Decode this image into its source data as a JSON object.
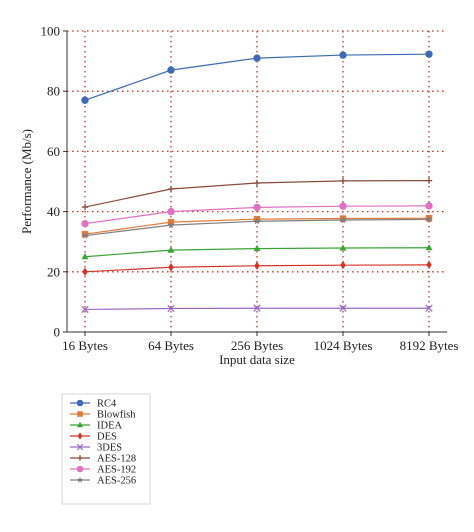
{
  "chart_data": {
    "type": "line",
    "xlabel": "Input data size",
    "ylabel": "Performance (Mb/s)",
    "categories": [
      "16 Bytes",
      "64 Bytes",
      "256 Bytes",
      "1024 Bytes",
      "8192 Bytes"
    ],
    "ylim": [
      0,
      100
    ],
    "yticks": [
      0,
      20,
      40,
      60,
      80,
      100
    ],
    "grid": "dotted",
    "grid_color": "#c0392b",
    "legend_position": "bottom-left",
    "series": [
      {
        "name": "RC4",
        "color": "#3d6bb5",
        "marker": "circle",
        "values": [
          77,
          87,
          91,
          92,
          92.3
        ]
      },
      {
        "name": "Blowfish",
        "color": "#e07b39",
        "marker": "square",
        "values": [
          32.5,
          36.5,
          37.5,
          37.7,
          37.8
        ]
      },
      {
        "name": "IDEA",
        "color": "#3aa535",
        "marker": "triangle",
        "values": [
          25,
          27.2,
          27.7,
          27.9,
          28
        ]
      },
      {
        "name": "DES",
        "color": "#d2342a",
        "marker": "diamond",
        "values": [
          20,
          21.5,
          22,
          22.2,
          22.3
        ]
      },
      {
        "name": "3DES",
        "color": "#9b6cc6",
        "marker": "x",
        "values": [
          7.5,
          7.8,
          7.9,
          7.9,
          7.9
        ]
      },
      {
        "name": "AES-128",
        "color": "#8b4a3c",
        "marker": "plus",
        "values": [
          41.5,
          47.5,
          49.5,
          50.2,
          50.3
        ]
      },
      {
        "name": "AES-192",
        "color": "#e070c0",
        "marker": "circle",
        "values": [
          36,
          40,
          41.4,
          41.8,
          41.9
        ]
      },
      {
        "name": "AES-256",
        "color": "#808080",
        "marker": "star",
        "values": [
          32,
          35.5,
          36.8,
          37.2,
          37.4
        ]
      }
    ]
  }
}
